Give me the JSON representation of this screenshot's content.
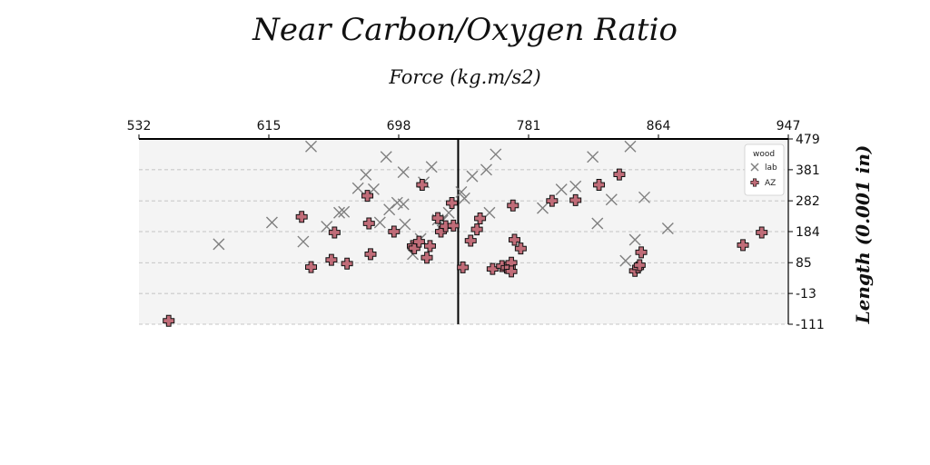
{
  "chart_data": {
    "type": "scatter",
    "title": "Near Carbon/Oxygen Ratio",
    "xlabel": "Force (kg.m/s2)",
    "ylabel": "Length (0.001 in)",
    "xlim": [
      532,
      947
    ],
    "ylim": [
      -111,
      479
    ],
    "x_ticks": [
      532,
      615,
      698,
      781,
      864,
      947
    ],
    "y_ticks": [
      479,
      381,
      282,
      184,
      85,
      -13,
      -111
    ],
    "x_tick_labels": [
      "532",
      "615",
      "698",
      "781",
      "864",
      "947"
    ],
    "y_tick_labels": [
      "479",
      "381",
      "282",
      "184",
      "85",
      "-13",
      "-111"
    ],
    "vline_x": 736,
    "grid": "horizontal dashed",
    "legend": {
      "title": "wood",
      "placement": "top-right"
    },
    "colors": {
      "lab": "#7f7f7f",
      "AZ": "#c06c78",
      "background": "#f4f4f4"
    },
    "series": [
      {
        "name": "lab",
        "marker": "x",
        "points": [
          [
            583,
            144
          ],
          [
            617,
            213
          ],
          [
            637,
            152
          ],
          [
            642,
            455
          ],
          [
            652,
            200
          ],
          [
            660,
            244
          ],
          [
            663,
            247
          ],
          [
            672,
            322
          ],
          [
            677,
            365
          ],
          [
            682,
            319
          ],
          [
            686,
            213
          ],
          [
            692,
            254
          ],
          [
            690,
            422
          ],
          [
            697,
            276
          ],
          [
            701,
            373
          ],
          [
            702,
            207
          ],
          [
            707,
            112
          ],
          [
            712,
            161
          ],
          [
            714,
            341
          ],
          [
            719,
            390
          ],
          [
            723,
            222
          ],
          [
            726,
            219
          ],
          [
            730,
            244
          ],
          [
            738,
            310
          ],
          [
            745,
            360
          ],
          [
            754,
            381
          ],
          [
            756,
            244
          ],
          [
            790,
            259
          ],
          [
            802,
            318
          ],
          [
            811,
            328
          ],
          [
            822,
            422
          ],
          [
            825,
            210
          ],
          [
            834,
            286
          ],
          [
            843,
            91
          ],
          [
            846,
            455
          ],
          [
            849,
            158
          ],
          [
            855,
            293
          ],
          [
            870,
            194
          ],
          [
            760,
            430
          ],
          [
            701,
            271
          ],
          [
            740,
            290
          ]
        ]
      },
      {
        "name": "AZ",
        "marker": "P",
        "points": [
          [
            551,
            -100
          ],
          [
            636,
            231
          ],
          [
            642,
            71
          ],
          [
            655,
            94
          ],
          [
            657,
            181
          ],
          [
            665,
            82
          ],
          [
            678,
            298
          ],
          [
            679,
            210
          ],
          [
            680,
            112
          ],
          [
            695,
            184
          ],
          [
            707,
            138
          ],
          [
            708,
            131
          ],
          [
            711,
            152
          ],
          [
            716,
            101
          ],
          [
            718,
            138
          ],
          [
            713,
            333
          ],
          [
            723,
            227
          ],
          [
            725,
            184
          ],
          [
            728,
            201
          ],
          [
            732,
            275
          ],
          [
            733,
            203
          ],
          [
            739,
            70
          ],
          [
            744,
            155
          ],
          [
            748,
            191
          ],
          [
            750,
            226
          ],
          [
            758,
            65
          ],
          [
            764,
            74
          ],
          [
            767,
            69
          ],
          [
            769,
            70
          ],
          [
            770,
            85
          ],
          [
            770,
            57
          ],
          [
            771,
            267
          ],
          [
            772,
            158
          ],
          [
            776,
            130
          ],
          [
            796,
            282
          ],
          [
            811,
            284
          ],
          [
            826,
            333
          ],
          [
            839,
            366
          ],
          [
            849,
            59
          ],
          [
            851,
            70
          ],
          [
            852,
            77
          ],
          [
            853,
            118
          ],
          [
            918,
            141
          ],
          [
            930,
            181
          ]
        ]
      }
    ]
  }
}
